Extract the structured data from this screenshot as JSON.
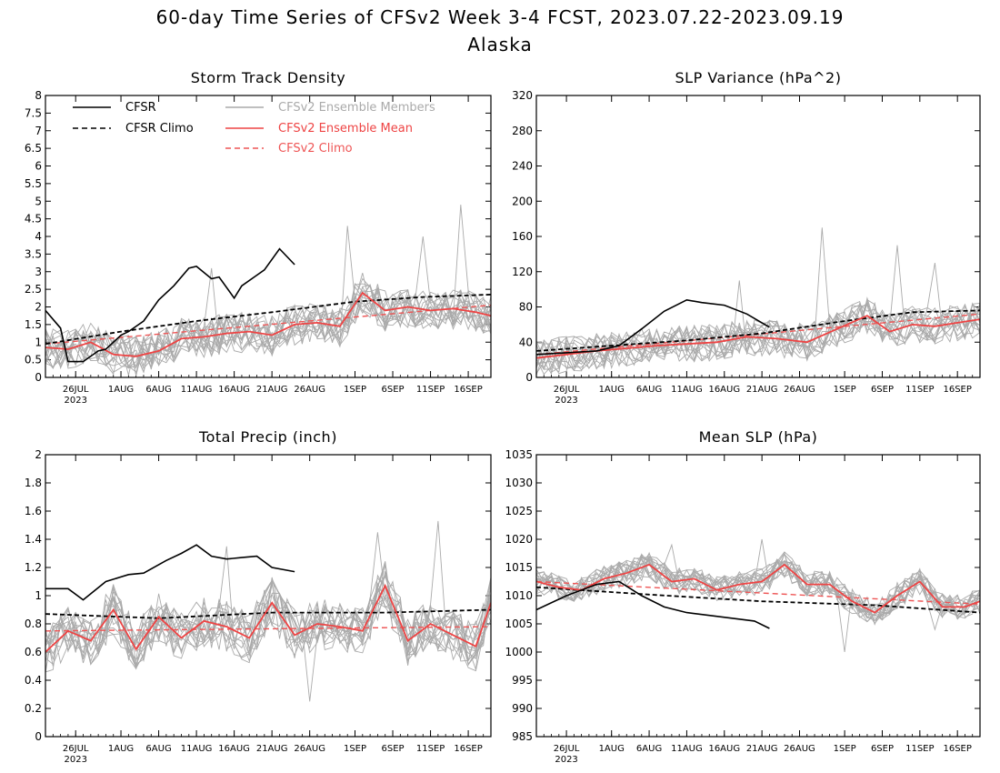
{
  "figure": {
    "title": "60-day Time Series of CFSv2 Week 3-4 FCST, 2023.07.22-2023.09.19",
    "subtitle": "Alaska"
  },
  "colors": {
    "cfsr": "#000000",
    "members": "#aaaaaa",
    "ens_mean": "#ee4444",
    "cfsv2_climo": "#ee5555"
  },
  "legend": {
    "cfsr": "CFSR",
    "cfsr_climo": "CFSR Climo",
    "members": "CFSv2 Ensemble Members",
    "ens_mean": "CFSv2 Ensemble Mean",
    "cfsv2_climo": "CFSv2 Climo"
  },
  "x_axis": {
    "type": "date",
    "start": "2023-07-22",
    "end": "2023-09-19",
    "ticks": [
      "26JUL",
      "1AUG",
      "6AUG",
      "11AUG",
      "16AUG",
      "21AUG",
      "26AUG",
      "1SEP",
      "6SEP",
      "11SEP",
      "16SEP"
    ],
    "tick_dates": [
      "2023-07-26",
      "2023-08-01",
      "2023-08-06",
      "2023-08-11",
      "2023-08-16",
      "2023-08-21",
      "2023-08-26",
      "2023-09-01",
      "2023-09-06",
      "2023-09-11",
      "2023-09-16"
    ],
    "year_label": "2023"
  },
  "chart_data": [
    {
      "type": "line",
      "title": "Storm Track Density",
      "ylim": [
        0,
        8
      ],
      "yticks": [
        "0",
        "0.5",
        "1",
        "1.5",
        "2",
        "2.5",
        "3",
        "3.5",
        "4",
        "4.5",
        "5",
        "5.5",
        "6",
        "6.5",
        "7",
        "7.5",
        "8"
      ],
      "legend_shown": true,
      "cfsr": {
        "dates": [
          "2023-07-22",
          "2023-07-24",
          "2023-07-25",
          "2023-07-27",
          "2023-07-29",
          "2023-07-30",
          "2023-08-01",
          "2023-08-02",
          "2023-08-04",
          "2023-08-06",
          "2023-08-08",
          "2023-08-10",
          "2023-08-11",
          "2023-08-13",
          "2023-08-14",
          "2023-08-16",
          "2023-08-17",
          "2023-08-19",
          "2023-08-20",
          "2023-08-22",
          "2023-08-24"
        ],
        "values": [
          1.9,
          1.4,
          0.45,
          0.45,
          0.75,
          0.8,
          1.2,
          1.3,
          1.6,
          2.2,
          2.6,
          3.1,
          3.15,
          2.8,
          2.85,
          2.25,
          2.6,
          2.9,
          3.05,
          3.65,
          3.2
        ]
      },
      "cfsr_climo": {
        "dates": [
          "2023-07-22",
          "2023-08-01",
          "2023-08-11",
          "2023-08-21",
          "2023-09-01",
          "2023-09-10",
          "2023-09-19"
        ],
        "values": [
          0.95,
          1.3,
          1.6,
          1.85,
          2.15,
          2.28,
          2.35
        ]
      },
      "cfsv2_climo": {
        "dates": [
          "2023-07-22",
          "2023-09-19"
        ],
        "values": [
          0.95,
          2.05
        ]
      },
      "ens_mean": {
        "dates": [
          "2023-07-22",
          "2023-07-25",
          "2023-07-28",
          "2023-07-31",
          "2023-08-03",
          "2023-08-06",
          "2023-08-09",
          "2023-08-12",
          "2023-08-15",
          "2023-08-18",
          "2023-08-21",
          "2023-08-24",
          "2023-08-27",
          "2023-08-30",
          "2023-09-02",
          "2023-09-05",
          "2023-09-08",
          "2023-09-11",
          "2023-09-14",
          "2023-09-17",
          "2023-09-19"
        ],
        "values": [
          0.85,
          0.8,
          1.0,
          0.65,
          0.6,
          0.75,
          1.1,
          1.15,
          1.25,
          1.3,
          1.2,
          1.5,
          1.55,
          1.45,
          2.4,
          1.9,
          2.0,
          1.9,
          1.95,
          1.85,
          1.75
        ]
      },
      "members": {
        "count": 16,
        "spread": 0.45,
        "spikes": [
          [
            0.68,
            4.3
          ],
          [
            0.85,
            4.0
          ],
          [
            0.93,
            4.9
          ],
          [
            0.38,
            3.1
          ]
        ]
      }
    },
    {
      "type": "line",
      "title": "SLP Variance (hPa^2)",
      "ylim": [
        0,
        320
      ],
      "yticks": [
        "0",
        "40",
        "80",
        "120",
        "160",
        "200",
        "240",
        "280",
        "320"
      ],
      "legend_shown": false,
      "cfsr": {
        "dates": [
          "2023-07-22",
          "2023-07-26",
          "2023-07-30",
          "2023-08-02",
          "2023-08-05",
          "2023-08-08",
          "2023-08-11",
          "2023-08-13",
          "2023-08-16",
          "2023-08-19",
          "2023-08-22"
        ],
        "values": [
          26,
          28,
          30,
          36,
          55,
          75,
          88,
          85,
          82,
          72,
          57
        ]
      },
      "cfsr_climo": {
        "dates": [
          "2023-07-22",
          "2023-08-01",
          "2023-08-11",
          "2023-08-21",
          "2023-09-01",
          "2023-09-10",
          "2023-09-19"
        ],
        "values": [
          30,
          36,
          42,
          50,
          64,
          74,
          76
        ]
      },
      "cfsv2_climo": {
        "dates": [
          "2023-07-22",
          "2023-09-19"
        ],
        "values": [
          26,
          72
        ]
      },
      "ens_mean": {
        "dates": [
          "2023-07-22",
          "2023-07-26",
          "2023-07-30",
          "2023-08-03",
          "2023-08-07",
          "2023-08-11",
          "2023-08-15",
          "2023-08-19",
          "2023-08-23",
          "2023-08-27",
          "2023-08-31",
          "2023-09-04",
          "2023-09-07",
          "2023-09-10",
          "2023-09-13",
          "2023-09-16",
          "2023-09-19"
        ],
        "values": [
          22,
          26,
          30,
          33,
          36,
          38,
          40,
          46,
          44,
          40,
          55,
          70,
          52,
          60,
          58,
          62,
          66
        ]
      },
      "members": {
        "count": 16,
        "spread": 16,
        "spikes": [
          [
            0.65,
            170
          ],
          [
            0.46,
            110
          ],
          [
            0.82,
            150
          ],
          [
            0.9,
            130
          ]
        ]
      }
    },
    {
      "type": "line",
      "title": "Total Precip (inch)",
      "ylim": [
        0,
        2
      ],
      "yticks": [
        "0",
        "0.2",
        "0.4",
        "0.6",
        "0.8",
        "1",
        "1.2",
        "1.4",
        "1.6",
        "1.8",
        "2"
      ],
      "legend_shown": false,
      "cfsr": {
        "dates": [
          "2023-07-22",
          "2023-07-25",
          "2023-07-27",
          "2023-07-30",
          "2023-08-02",
          "2023-08-04",
          "2023-08-07",
          "2023-08-09",
          "2023-08-11",
          "2023-08-13",
          "2023-08-15",
          "2023-08-17",
          "2023-08-19",
          "2023-08-21",
          "2023-08-24"
        ],
        "values": [
          1.05,
          1.05,
          0.97,
          1.1,
          1.15,
          1.16,
          1.25,
          1.3,
          1.36,
          1.28,
          1.26,
          1.27,
          1.28,
          1.2,
          1.17
        ]
      },
      "cfsr_climo": {
        "dates": [
          "2023-07-22",
          "2023-08-06",
          "2023-08-21",
          "2023-09-05",
          "2023-09-19"
        ],
        "values": [
          0.87,
          0.84,
          0.88,
          0.88,
          0.9
        ]
      },
      "cfsv2_climo": {
        "dates": [
          "2023-07-22",
          "2023-09-19"
        ],
        "values": [
          0.75,
          0.78
        ]
      },
      "ens_mean": {
        "dates": [
          "2023-07-22",
          "2023-07-25",
          "2023-07-28",
          "2023-07-31",
          "2023-08-03",
          "2023-08-06",
          "2023-08-09",
          "2023-08-12",
          "2023-08-15",
          "2023-08-18",
          "2023-08-21",
          "2023-08-24",
          "2023-08-27",
          "2023-08-30",
          "2023-09-02",
          "2023-09-05",
          "2023-09-08",
          "2023-09-11",
          "2023-09-14",
          "2023-09-17",
          "2023-09-19"
        ],
        "values": [
          0.6,
          0.75,
          0.68,
          0.9,
          0.62,
          0.85,
          0.7,
          0.82,
          0.78,
          0.7,
          0.95,
          0.72,
          0.8,
          0.78,
          0.75,
          1.07,
          0.68,
          0.8,
          0.72,
          0.64,
          0.95
        ]
      },
      "members": {
        "count": 16,
        "spread": 0.14,
        "spikes": [
          [
            0.4,
            1.35
          ],
          [
            0.74,
            1.45
          ],
          [
            0.88,
            1.53
          ],
          [
            0.6,
            0.25
          ]
        ]
      }
    },
    {
      "type": "line",
      "title": "Mean SLP (hPa)",
      "ylim": [
        985,
        1035
      ],
      "yticks": [
        "985",
        "990",
        "995",
        "1000",
        "1005",
        "1010",
        "1015",
        "1020",
        "1025",
        "1030",
        "1035"
      ],
      "legend_shown": false,
      "cfsr": {
        "dates": [
          "2023-07-22",
          "2023-07-26",
          "2023-07-30",
          "2023-08-02",
          "2023-08-05",
          "2023-08-08",
          "2023-08-11",
          "2023-08-14",
          "2023-08-17",
          "2023-08-20",
          "2023-08-22"
        ],
        "values": [
          1007.5,
          1010,
          1012,
          1012.5,
          1010,
          1008,
          1007,
          1006.5,
          1006,
          1005.5,
          1004.2
        ]
      },
      "cfsr_climo": {
        "dates": [
          "2023-07-22",
          "2023-08-06",
          "2023-08-21",
          "2023-09-05",
          "2023-09-19"
        ],
        "values": [
          1011.5,
          1010.2,
          1009,
          1008.3,
          1007
        ]
      },
      "cfsv2_climo": {
        "dates": [
          "2023-07-22",
          "2023-09-19"
        ],
        "values": [
          1012.5,
          1008.5
        ]
      },
      "ens_mean": {
        "dates": [
          "2023-07-22",
          "2023-07-25",
          "2023-07-28",
          "2023-07-31",
          "2023-08-03",
          "2023-08-06",
          "2023-08-09",
          "2023-08-12",
          "2023-08-15",
          "2023-08-18",
          "2023-08-21",
          "2023-08-24",
          "2023-08-27",
          "2023-08-30",
          "2023-09-02",
          "2023-09-05",
          "2023-09-08",
          "2023-09-11",
          "2023-09-14",
          "2023-09-17",
          "2023-09-19"
        ],
        "values": [
          1012.5,
          1011.5,
          1011,
          1013,
          1014,
          1015.5,
          1012.5,
          1013,
          1011,
          1012,
          1012.5,
          1015.5,
          1012,
          1012,
          1009,
          1007,
          1010,
          1012.5,
          1008,
          1008,
          1009
        ]
      },
      "members": {
        "count": 16,
        "spread": 1.8,
        "spikes": [
          [
            0.5,
            1020
          ],
          [
            0.7,
            1000
          ],
          [
            0.9,
            1004
          ],
          [
            0.3,
            1019
          ]
        ]
      }
    }
  ]
}
